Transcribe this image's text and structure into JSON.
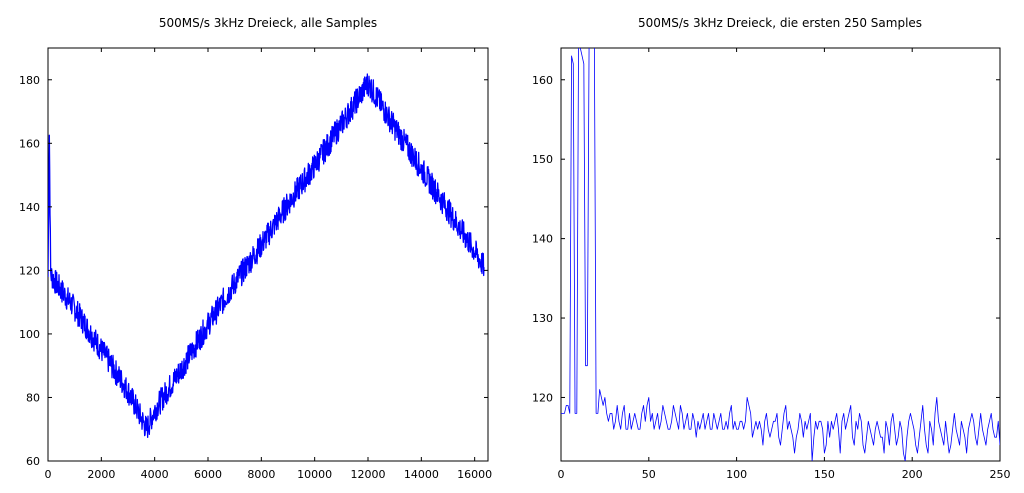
{
  "chart_data": [
    {
      "type": "line",
      "title": "500MS/s 3kHz Dreieck, alle Samples",
      "xlabel": "",
      "ylabel": "",
      "xlim": [
        0,
        16500
      ],
      "ylim": [
        60,
        190
      ],
      "xticks": [
        0,
        2000,
        4000,
        6000,
        8000,
        10000,
        12000,
        14000,
        16000
      ],
      "yticks": [
        60,
        80,
        100,
        120,
        140,
        160,
        180
      ],
      "grid": false,
      "series": [
        {
          "color": "#0000ff",
          "x": [
            0,
            50,
            100,
            150,
            300,
            1000,
            2000,
            3000,
            3700,
            4000,
            5000,
            6000,
            7000,
            8000,
            9000,
            10000,
            11000,
            12000,
            13000,
            14000,
            15000,
            16000,
            16350
          ],
          "y": [
            118,
            163,
            119,
            118,
            116,
            108,
            95,
            82,
            70,
            76,
            89,
            103,
            116,
            128,
            141,
            153,
            166,
            179,
            165,
            152,
            139,
            126,
            121
          ],
          "noise_band": 4
        }
      ]
    },
    {
      "type": "line",
      "title": "500MS/s 3kHz Dreieck, die ersten 250 Samples",
      "xlabel": "",
      "ylabel": "",
      "xlim": [
        0,
        250
      ],
      "ylim": [
        112,
        164
      ],
      "xticks": [
        0,
        50,
        100,
        150,
        200,
        250
      ],
      "yticks": [
        120,
        130,
        140,
        150,
        160
      ],
      "grid": false,
      "series": [
        {
          "color": "#0000ff",
          "x": [
            0,
            1,
            2,
            3,
            4,
            5,
            6,
            7,
            8,
            9,
            10,
            11,
            12,
            13,
            14,
            15,
            16,
            17,
            18,
            19,
            20,
            21,
            22,
            23,
            24,
            25,
            26,
            27,
            28,
            29,
            30,
            31,
            32,
            33,
            34,
            35,
            36,
            37,
            38,
            39,
            40,
            41,
            42,
            43,
            44,
            45,
            46,
            47,
            48,
            49,
            50,
            51,
            52,
            53,
            54,
            55,
            56,
            57,
            58,
            59,
            60,
            61,
            62,
            63,
            64,
            65,
            66,
            67,
            68,
            69,
            70,
            71,
            72,
            73,
            74,
            75,
            76,
            77,
            78,
            79,
            80,
            81,
            82,
            83,
            84,
            85,
            86,
            87,
            88,
            89,
            90,
            91,
            92,
            93,
            94,
            95,
            96,
            97,
            98,
            99,
            100,
            101,
            102,
            103,
            104,
            105,
            106,
            107,
            108,
            109,
            110,
            111,
            112,
            113,
            114,
            115,
            116,
            117,
            118,
            119,
            120,
            121,
            122,
            123,
            124,
            125,
            126,
            127,
            128,
            129,
            130,
            131,
            132,
            133,
            134,
            135,
            136,
            137,
            138,
            139,
            140,
            141,
            142,
            143,
            144,
            145,
            146,
            147,
            148,
            149,
            150,
            151,
            152,
            153,
            154,
            155,
            156,
            157,
            158,
            159,
            160,
            161,
            162,
            163,
            164,
            165,
            166,
            167,
            168,
            169,
            170,
            171,
            172,
            173,
            174,
            175,
            176,
            177,
            178,
            179,
            180,
            181,
            182,
            183,
            184,
            185,
            186,
            187,
            188,
            189,
            190,
            191,
            192,
            193,
            194,
            195,
            196,
            197,
            198,
            199,
            200,
            201,
            202,
            203,
            204,
            205,
            206,
            207,
            208,
            209,
            210,
            211,
            212,
            213,
            214,
            215,
            216,
            217,
            218,
            219,
            220,
            221,
            222,
            223,
            224,
            225,
            226,
            227,
            228,
            229,
            230,
            231,
            232,
            233,
            234,
            235,
            236,
            237,
            238,
            239,
            240,
            241,
            242,
            243,
            244,
            245,
            246,
            247,
            248,
            249,
            250
          ],
          "y": [
            118,
            118,
            118,
            119,
            119,
            118,
            163,
            162,
            118,
            118,
            165,
            164,
            163,
            162,
            124,
            124,
            165,
            165,
            165,
            165,
            118,
            118,
            121,
            120,
            119,
            120,
            118,
            117,
            118,
            118,
            116,
            117,
            119,
            117,
            116,
            118,
            119,
            116,
            116,
            118,
            116,
            117,
            118,
            117,
            116,
            116,
            118,
            119,
            117,
            119,
            120,
            117,
            118,
            116,
            117,
            118,
            116,
            117,
            119,
            118,
            117,
            116,
            116,
            117,
            119,
            118,
            117,
            116,
            119,
            118,
            116,
            117,
            118,
            116,
            116,
            118,
            117,
            115,
            117,
            116,
            117,
            118,
            116,
            117,
            118,
            116,
            116,
            118,
            117,
            116,
            117,
            118,
            116,
            116,
            117,
            116,
            118,
            119,
            116,
            117,
            116,
            116,
            117,
            117,
            116,
            117,
            120,
            119,
            118,
            115,
            116,
            117,
            116,
            117,
            116,
            114,
            117,
            118,
            116,
            115,
            116,
            117,
            117,
            118,
            115,
            114,
            116,
            118,
            119,
            116,
            117,
            116,
            115,
            113,
            115,
            116,
            118,
            117,
            115,
            117,
            116,
            117,
            118,
            112,
            115,
            117,
            116,
            117,
            117,
            116,
            113,
            114,
            117,
            115,
            117,
            116,
            117,
            118,
            116,
            113,
            117,
            118,
            116,
            117,
            118,
            119,
            115,
            114,
            117,
            116,
            118,
            117,
            114,
            113,
            115,
            117,
            116,
            115,
            114,
            116,
            117,
            116,
            115,
            115,
            113,
            117,
            116,
            114,
            117,
            118,
            116,
            114,
            115,
            117,
            116,
            113,
            112,
            115,
            117,
            118,
            117,
            116,
            114,
            113,
            115,
            117,
            119,
            116,
            114,
            113,
            117,
            116,
            114,
            118,
            120,
            117,
            116,
            115,
            114,
            117,
            115,
            113,
            114,
            116,
            118,
            116,
            115,
            114,
            117,
            116,
            115,
            113,
            116,
            117,
            118,
            117,
            115,
            114,
            116,
            118,
            116,
            115,
            114,
            116,
            117,
            118,
            116,
            115,
            115,
            117,
            114
          ]
        }
      ]
    }
  ]
}
